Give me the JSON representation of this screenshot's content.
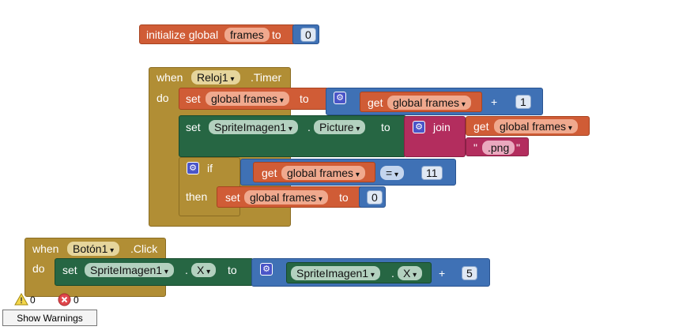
{
  "init_block": {
    "label_initialize": "initialize global",
    "var_name": "frames",
    "label_to": "to",
    "value": "0"
  },
  "timer_block": {
    "when": "when",
    "component": "Reloj1",
    "event": ".Timer",
    "do": "do",
    "stmt1": {
      "set": "set",
      "var": "global frames",
      "to": "to",
      "get": "get",
      "get_var": "global frames",
      "op": "+",
      "num": "1"
    },
    "stmt2": {
      "set": "set",
      "component": "SpriteImagen1",
      "dot": ".",
      "property": "Picture",
      "to": "to",
      "join": "join",
      "get": "get",
      "get_var": "global frames",
      "q1": "\"",
      "text": ".png",
      "q2": "\""
    },
    "stmt3": {
      "if": "if",
      "get": "get",
      "get_var": "global frames",
      "cmp": "=",
      "num": "11",
      "then": "then",
      "set": "set",
      "set_var": "global frames",
      "to": "to",
      "value": "0"
    }
  },
  "click_block": {
    "when": "when",
    "component": "Botón1",
    "event": ".Click",
    "do": "do",
    "set": "set",
    "set_component": "SpriteImagen1",
    "dot1": ".",
    "set_property": "X",
    "to": "to",
    "get_component": "SpriteImagen1",
    "dot2": ".",
    "get_property": "X",
    "op": "+",
    "num": "5"
  },
  "warnings": {
    "warning_count": "0",
    "error_count": "0",
    "button_label": "Show Warnings"
  }
}
